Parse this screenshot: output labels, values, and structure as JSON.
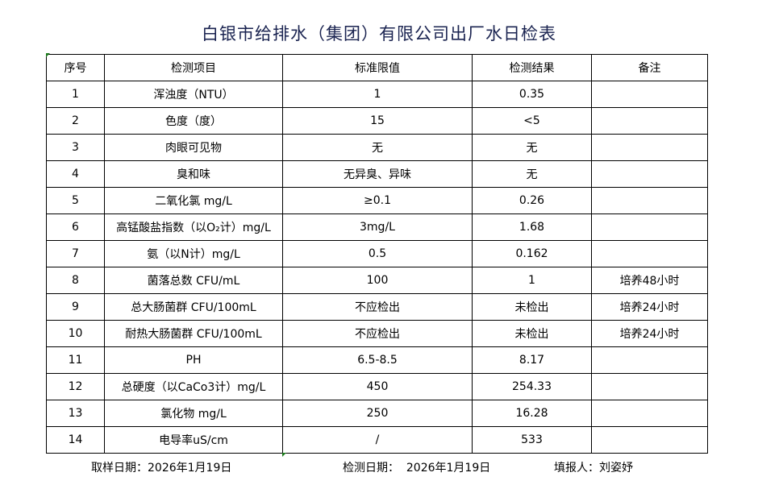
{
  "title": "白银市给排水（集团）有限公司出厂水日检表",
  "headers": [
    "序号",
    "检测项目",
    "标准限值",
    "检测结果",
    "备注"
  ],
  "rows": [
    {
      "no": "1",
      "item": "浑浊度（NTU）",
      "limit": "1",
      "result": "0.35",
      "note": ""
    },
    {
      "no": "2",
      "item": "色度（度）",
      "limit": "15",
      "result": "<5",
      "note": ""
    },
    {
      "no": "3",
      "item": "肉眼可见物",
      "limit": "无",
      "result": "无",
      "note": ""
    },
    {
      "no": "4",
      "item": "臭和味",
      "limit": "无异臭、异味",
      "result": "无",
      "note": ""
    },
    {
      "no": "5",
      "item": "二氧化氯 mg/L",
      "limit": "≥0.1",
      "result": "0.26",
      "note": ""
    },
    {
      "no": "6",
      "item": "高锰酸盐指数（以O₂计）mg/L",
      "limit": "3mg/L",
      "result": "1.68",
      "note": ""
    },
    {
      "no": "7",
      "item": "氨（以N计）mg/L",
      "limit": "0.5",
      "result": "0.162",
      "note": ""
    },
    {
      "no": "8",
      "item": "菌落总数 CFU/mL",
      "limit": "100",
      "result": "1",
      "note": "培养48小时"
    },
    {
      "no": "9",
      "item": "总大肠菌群 CFU/100mL",
      "limit": "不应检出",
      "result": "未检出",
      "note": "培养24小时"
    },
    {
      "no": "10",
      "item": "耐热大肠菌群 CFU/100mL",
      "limit": "不应检出",
      "result": "未检出",
      "note": "培养24小时"
    },
    {
      "no": "11",
      "item": "PH",
      "limit": "6.5-8.5",
      "result": "8.17",
      "note": ""
    },
    {
      "no": "12",
      "item": "总硬度（以CaCo3计）mg/L",
      "limit": "450",
      "result": "254.33",
      "note": ""
    },
    {
      "no": "13",
      "item": "氯化物 mg/L",
      "limit": "250",
      "result": "16.28",
      "note": ""
    },
    {
      "no": "14",
      "item": "电导率uS/cm",
      "limit": "/",
      "result": "533",
      "note": ""
    }
  ],
  "footer": {
    "sample_date": "取样日期：2026年1月19日",
    "test_date": "检测日期：  2026年1月19日",
    "reporter": "填报人：刘姿妤"
  },
  "colors": {
    "title": "#1a2350",
    "cell_marker": "#1a7a1a"
  }
}
